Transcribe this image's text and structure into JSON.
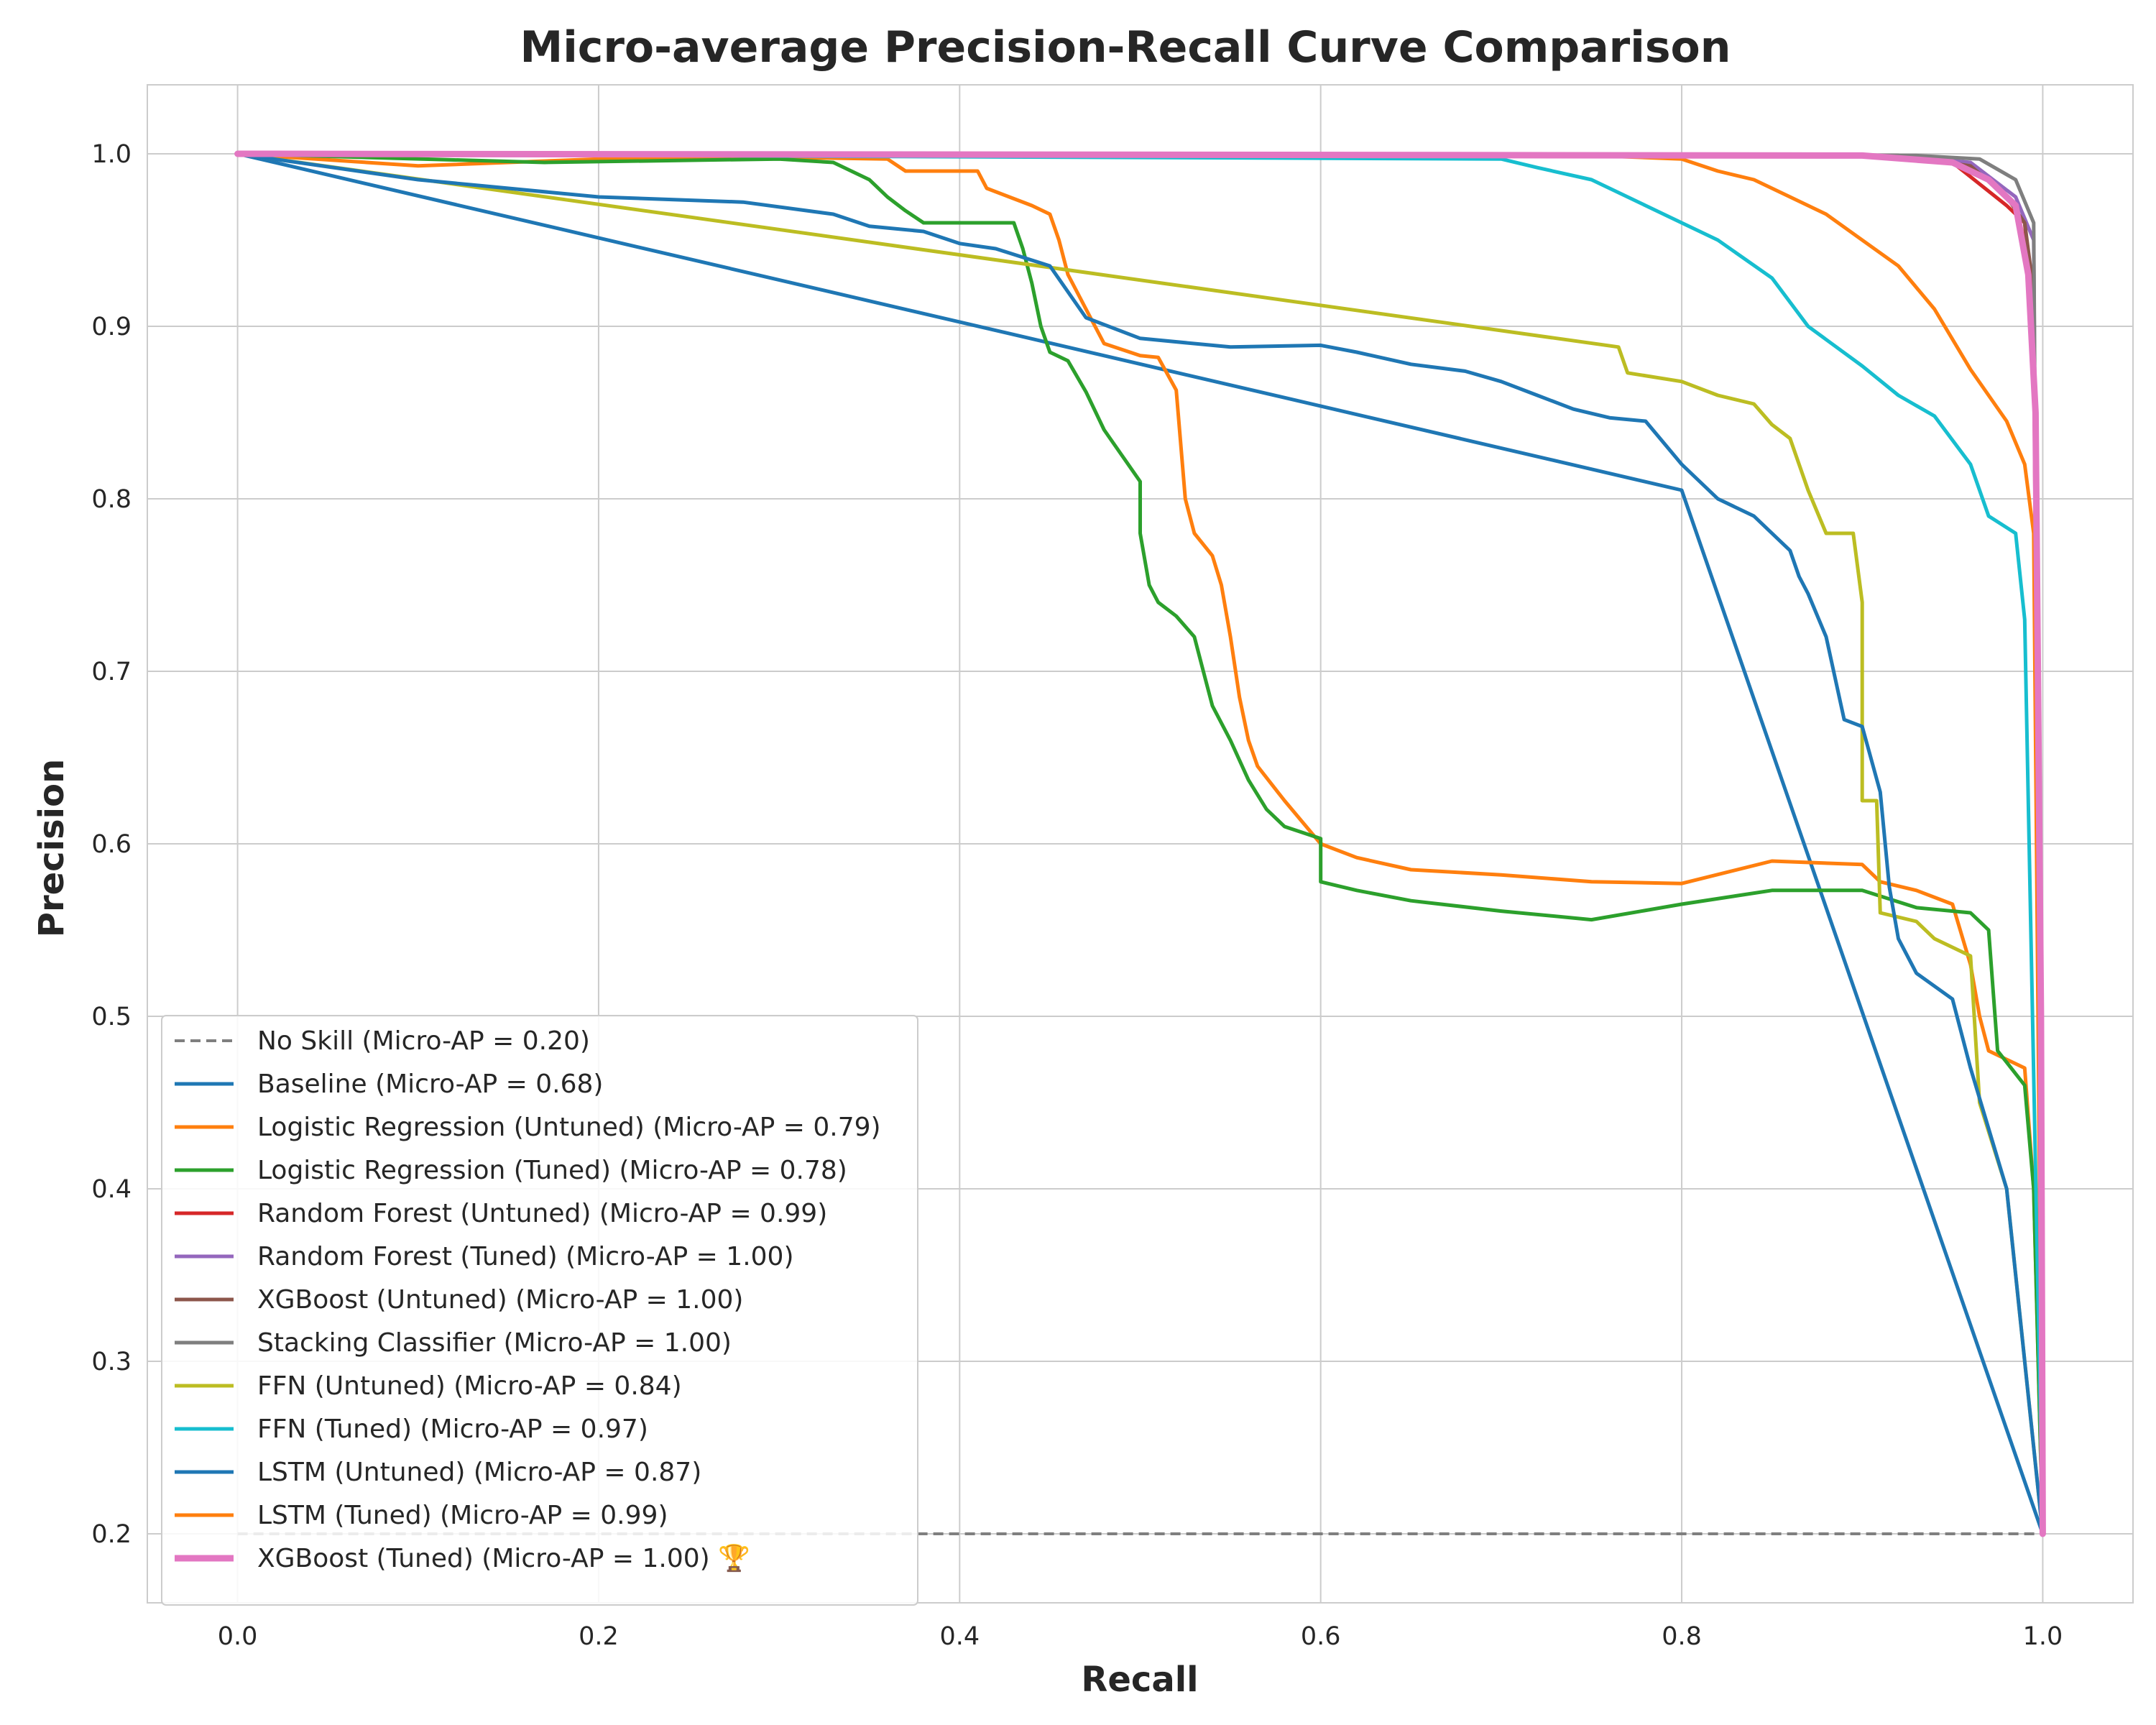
{
  "chart_data": {
    "type": "line",
    "title": "Micro-average Precision-Recall Curve Comparison",
    "xlabel": "Recall",
    "ylabel": "Precision",
    "xlim": [
      -0.05,
      1.05
    ],
    "ylim": [
      0.16,
      1.04
    ],
    "xticks": [
      "0.0",
      "0.2",
      "0.4",
      "0.6",
      "0.8",
      "1.0"
    ],
    "yticks": [
      "0.2",
      "0.3",
      "0.4",
      "0.5",
      "0.6",
      "0.7",
      "0.8",
      "0.9",
      "1.0"
    ],
    "grid": true,
    "legend_position": "lower left",
    "series": [
      {
        "name": "No Skill (Micro-AP = 0.20)",
        "color": "#7f7f7f",
        "dashed": true,
        "width": 4,
        "points": [
          [
            0,
            0.2
          ],
          [
            1,
            0.2
          ]
        ]
      },
      {
        "name": "Baseline (Micro-AP = 0.68)",
        "color": "#1f77b4",
        "width": 5,
        "points": [
          [
            0,
            1.0
          ],
          [
            0.8,
            0.805
          ],
          [
            1.0,
            0.2
          ]
        ]
      },
      {
        "name": "Logistic Regression (Untuned) (Micro-AP = 0.79)",
        "color": "#ff7f0e",
        "width": 5,
        "points": [
          [
            0,
            1.0
          ],
          [
            0.1,
            0.993
          ],
          [
            0.2,
            0.997
          ],
          [
            0.3,
            0.998
          ],
          [
            0.36,
            0.997
          ],
          [
            0.37,
            0.99
          ],
          [
            0.41,
            0.99
          ],
          [
            0.415,
            0.98
          ],
          [
            0.44,
            0.97
          ],
          [
            0.45,
            0.965
          ],
          [
            0.455,
            0.95
          ],
          [
            0.46,
            0.93
          ],
          [
            0.47,
            0.91
          ],
          [
            0.48,
            0.89
          ],
          [
            0.5,
            0.883
          ],
          [
            0.51,
            0.882
          ],
          [
            0.52,
            0.863
          ],
          [
            0.525,
            0.8
          ],
          [
            0.53,
            0.78
          ],
          [
            0.54,
            0.767
          ],
          [
            0.545,
            0.75
          ],
          [
            0.55,
            0.72
          ],
          [
            0.555,
            0.685
          ],
          [
            0.56,
            0.66
          ],
          [
            0.565,
            0.645
          ],
          [
            0.58,
            0.625
          ],
          [
            0.6,
            0.6
          ],
          [
            0.62,
            0.592
          ],
          [
            0.65,
            0.585
          ],
          [
            0.7,
            0.582
          ],
          [
            0.75,
            0.578
          ],
          [
            0.8,
            0.577
          ],
          [
            0.85,
            0.59
          ],
          [
            0.9,
            0.588
          ],
          [
            0.91,
            0.578
          ],
          [
            0.93,
            0.573
          ],
          [
            0.95,
            0.565
          ],
          [
            0.96,
            0.53
          ],
          [
            0.965,
            0.5
          ],
          [
            0.97,
            0.48
          ],
          [
            0.99,
            0.47
          ],
          [
            0.995,
            0.4
          ],
          [
            1.0,
            0.2
          ]
        ]
      },
      {
        "name": "Logistic Regression (Tuned) (Micro-AP = 0.78)",
        "color": "#2ca02c",
        "width": 5,
        "points": [
          [
            0,
            1.0
          ],
          [
            0.17,
            0.995
          ],
          [
            0.3,
            0.997
          ],
          [
            0.33,
            0.995
          ],
          [
            0.35,
            0.985
          ],
          [
            0.36,
            0.975
          ],
          [
            0.37,
            0.967
          ],
          [
            0.38,
            0.96
          ],
          [
            0.43,
            0.96
          ],
          [
            0.435,
            0.945
          ],
          [
            0.44,
            0.925
          ],
          [
            0.445,
            0.9
          ],
          [
            0.45,
            0.885
          ],
          [
            0.46,
            0.88
          ],
          [
            0.47,
            0.862
          ],
          [
            0.48,
            0.84
          ],
          [
            0.49,
            0.825
          ],
          [
            0.5,
            0.81
          ],
          [
            0.5,
            0.78
          ],
          [
            0.505,
            0.75
          ],
          [
            0.51,
            0.74
          ],
          [
            0.52,
            0.732
          ],
          [
            0.53,
            0.72
          ],
          [
            0.535,
            0.7
          ],
          [
            0.54,
            0.68
          ],
          [
            0.55,
            0.66
          ],
          [
            0.56,
            0.637
          ],
          [
            0.57,
            0.62
          ],
          [
            0.58,
            0.61
          ],
          [
            0.6,
            0.603
          ],
          [
            0.6,
            0.578
          ],
          [
            0.62,
            0.573
          ],
          [
            0.65,
            0.567
          ],
          [
            0.7,
            0.561
          ],
          [
            0.75,
            0.556
          ],
          [
            0.8,
            0.565
          ],
          [
            0.85,
            0.573
          ],
          [
            0.9,
            0.573
          ],
          [
            0.93,
            0.563
          ],
          [
            0.96,
            0.56
          ],
          [
            0.97,
            0.55
          ],
          [
            0.975,
            0.48
          ],
          [
            0.99,
            0.46
          ],
          [
            0.995,
            0.4
          ],
          [
            1.0,
            0.2
          ]
        ]
      },
      {
        "name": "Random Forest (Untuned) (Micro-AP = 0.99)",
        "color": "#d62728",
        "width": 5,
        "points": [
          [
            0,
            1.0
          ],
          [
            0.9,
            0.999
          ],
          [
            0.95,
            0.995
          ],
          [
            0.98,
            0.97
          ],
          [
            0.99,
            0.96
          ],
          [
            0.995,
            0.9
          ],
          [
            1.0,
            0.2
          ]
        ]
      },
      {
        "name": "Random Forest (Tuned) (Micro-AP = 1.00)",
        "color": "#9467bd",
        "width": 5,
        "points": [
          [
            0,
            1.0
          ],
          [
            0.92,
            0.999
          ],
          [
            0.96,
            0.995
          ],
          [
            0.985,
            0.975
          ],
          [
            0.995,
            0.95
          ],
          [
            1.0,
            0.2
          ]
        ]
      },
      {
        "name": "XGBoost (Untuned) (Micro-AP = 1.00)",
        "color": "#8c564b",
        "width": 5,
        "points": [
          [
            0,
            1.0
          ],
          [
            0.92,
            0.999
          ],
          [
            0.96,
            0.993
          ],
          [
            0.98,
            0.975
          ],
          [
            0.99,
            0.96
          ],
          [
            0.995,
            0.92
          ],
          [
            1.0,
            0.2
          ]
        ]
      },
      {
        "name": "Stacking Classifier (Micro-AP = 1.00)",
        "color": "#7f7f7f",
        "width": 5,
        "points": [
          [
            0,
            1.0
          ],
          [
            0.93,
            0.999
          ],
          [
            0.965,
            0.997
          ],
          [
            0.985,
            0.985
          ],
          [
            0.995,
            0.96
          ],
          [
            1.0,
            0.2
          ]
        ]
      },
      {
        "name": "FFN (Untuned) (Micro-AP = 0.84)",
        "color": "#bcbd22",
        "width": 5,
        "points": [
          [
            0,
            1.0
          ],
          [
            0.765,
            0.888
          ],
          [
            0.77,
            0.873
          ],
          [
            0.8,
            0.868
          ],
          [
            0.82,
            0.86
          ],
          [
            0.84,
            0.855
          ],
          [
            0.85,
            0.843
          ],
          [
            0.86,
            0.835
          ],
          [
            0.87,
            0.805
          ],
          [
            0.88,
            0.78
          ],
          [
            0.895,
            0.78
          ],
          [
            0.9,
            0.74
          ],
          [
            0.9,
            0.625
          ],
          [
            0.908,
            0.625
          ],
          [
            0.91,
            0.56
          ],
          [
            0.93,
            0.555
          ],
          [
            0.94,
            0.545
          ],
          [
            0.96,
            0.535
          ],
          [
            0.965,
            0.45
          ],
          [
            0.98,
            0.4
          ],
          [
            1.0,
            0.2
          ]
        ]
      },
      {
        "name": "FFN (Tuned) (Micro-AP = 0.97)",
        "color": "#17becf",
        "width": 5,
        "points": [
          [
            0,
            1.0
          ],
          [
            0.7,
            0.997
          ],
          [
            0.72,
            0.992
          ],
          [
            0.75,
            0.985
          ],
          [
            0.78,
            0.97
          ],
          [
            0.8,
            0.96
          ],
          [
            0.82,
            0.95
          ],
          [
            0.85,
            0.928
          ],
          [
            0.87,
            0.9
          ],
          [
            0.9,
            0.877
          ],
          [
            0.92,
            0.86
          ],
          [
            0.94,
            0.848
          ],
          [
            0.96,
            0.82
          ],
          [
            0.97,
            0.79
          ],
          [
            0.985,
            0.78
          ],
          [
            0.99,
            0.73
          ],
          [
            1.0,
            0.2
          ]
        ]
      },
      {
        "name": "LSTM (Untuned) (Micro-AP = 0.87)",
        "color": "#1f77b4",
        "width": 5,
        "points": [
          [
            0,
            1.0
          ],
          [
            0.1,
            0.985
          ],
          [
            0.2,
            0.975
          ],
          [
            0.28,
            0.972
          ],
          [
            0.33,
            0.965
          ],
          [
            0.35,
            0.958
          ],
          [
            0.38,
            0.955
          ],
          [
            0.4,
            0.948
          ],
          [
            0.42,
            0.945
          ],
          [
            0.45,
            0.935
          ],
          [
            0.47,
            0.905
          ],
          [
            0.5,
            0.893
          ],
          [
            0.55,
            0.888
          ],
          [
            0.6,
            0.889
          ],
          [
            0.62,
            0.885
          ],
          [
            0.65,
            0.878
          ],
          [
            0.68,
            0.874
          ],
          [
            0.7,
            0.868
          ],
          [
            0.72,
            0.86
          ],
          [
            0.74,
            0.852
          ],
          [
            0.76,
            0.847
          ],
          [
            0.78,
            0.845
          ],
          [
            0.8,
            0.82
          ],
          [
            0.82,
            0.8
          ],
          [
            0.84,
            0.79
          ],
          [
            0.86,
            0.77
          ],
          [
            0.865,
            0.755
          ],
          [
            0.87,
            0.745
          ],
          [
            0.88,
            0.72
          ],
          [
            0.89,
            0.672
          ],
          [
            0.9,
            0.668
          ],
          [
            0.91,
            0.63
          ],
          [
            0.915,
            0.575
          ],
          [
            0.92,
            0.545
          ],
          [
            0.93,
            0.525
          ],
          [
            0.95,
            0.51
          ],
          [
            0.96,
            0.47
          ],
          [
            0.98,
            0.4
          ],
          [
            0.99,
            0.3
          ],
          [
            1.0,
            0.2
          ]
        ]
      },
      {
        "name": "LSTM (Tuned) (Micro-AP = 0.99)",
        "color": "#ff7f0e",
        "width": 5,
        "points": [
          [
            0,
            1.0
          ],
          [
            0.75,
            0.999
          ],
          [
            0.8,
            0.997
          ],
          [
            0.82,
            0.99
          ],
          [
            0.84,
            0.985
          ],
          [
            0.86,
            0.975
          ],
          [
            0.88,
            0.965
          ],
          [
            0.9,
            0.95
          ],
          [
            0.92,
            0.935
          ],
          [
            0.94,
            0.91
          ],
          [
            0.96,
            0.875
          ],
          [
            0.98,
            0.845
          ],
          [
            0.99,
            0.82
          ],
          [
            0.995,
            0.78
          ],
          [
            1.0,
            0.2
          ]
        ]
      },
      {
        "name": "XGBoost (Tuned) (Micro-AP = 1.00) 🏆",
        "color": "#e377c2",
        "width": 9,
        "points": [
          [
            0,
            1.0
          ],
          [
            0.9,
            0.999
          ],
          [
            0.95,
            0.995
          ],
          [
            0.97,
            0.985
          ],
          [
            0.985,
            0.97
          ],
          [
            0.992,
            0.93
          ],
          [
            0.996,
            0.85
          ],
          [
            0.999,
            0.5
          ],
          [
            1.0,
            0.2
          ]
        ]
      }
    ]
  }
}
